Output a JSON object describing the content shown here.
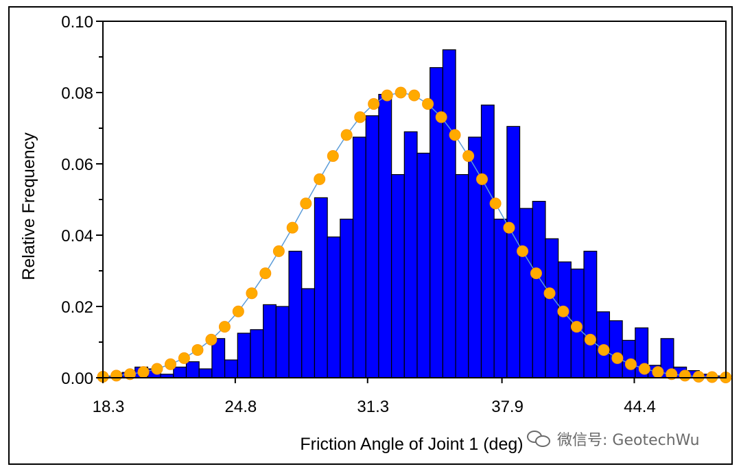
{
  "chart_data": {
    "type": "bar",
    "title": "",
    "xlabel": "Friction Angle of Joint 1 (deg)",
    "ylabel": "Relative Frequency",
    "x_range": [
      18.3,
      48.9
    ],
    "ylim": [
      0,
      0.1
    ],
    "y_ticks": [
      "0.00",
      "0.02",
      "0.04",
      "0.06",
      "0.08",
      "0.10"
    ],
    "x_ticks": [
      "18.3",
      "24.8",
      "31.3",
      "37.9",
      "44.4"
    ],
    "grid": false,
    "legend": "none",
    "bar_color": "#0000ff",
    "curve_color": "#ffaa00",
    "series": [
      {
        "type": "bar",
        "bin_centers": [
          18.3,
          18.93,
          19.56,
          20.19,
          20.82,
          21.45,
          22.08,
          22.71,
          23.34,
          23.97,
          24.6,
          25.23,
          25.86,
          26.49,
          27.12,
          27.75,
          28.38,
          29.01,
          29.64,
          30.27,
          30.9,
          31.53,
          32.16,
          32.79,
          33.42,
          34.05,
          34.68,
          35.31,
          35.94,
          36.57,
          37.2,
          37.83,
          38.46,
          39.09,
          39.72,
          40.35,
          40.98,
          41.61,
          42.24,
          42.87,
          43.5,
          44.13,
          44.76,
          45.39,
          46.02,
          46.65,
          47.28,
          47.91,
          48.54
        ],
        "values": [
          0.0005,
          0.0005,
          0.0015,
          0.003,
          0.0025,
          0.001,
          0.003,
          0.0045,
          0.0025,
          0.011,
          0.005,
          0.0125,
          0.0135,
          0.0205,
          0.02,
          0.0355,
          0.025,
          0.0505,
          0.0395,
          0.0445,
          0.0675,
          0.0735,
          0.0795,
          0.057,
          0.069,
          0.063,
          0.087,
          0.092,
          0.057,
          0.0675,
          0.0765,
          0.0445,
          0.0705,
          0.0475,
          0.0495,
          0.039,
          0.0325,
          0.0305,
          0.0355,
          0.0185,
          0.016,
          0.0105,
          0.014,
          0.0035,
          0.011,
          0.003,
          0.002,
          0.001,
          0.0005
        ]
      },
      {
        "type": "line",
        "marker": "dot",
        "x": [
          18.3,
          18.96,
          19.63,
          20.29,
          20.96,
          21.62,
          22.29,
          22.95,
          23.62,
          24.28,
          24.95,
          25.61,
          26.28,
          26.94,
          27.61,
          28.27,
          28.94,
          29.6,
          30.27,
          30.93,
          31.6,
          32.26,
          32.93,
          33.59,
          34.26,
          34.92,
          35.59,
          36.25,
          36.92,
          37.58,
          38.25,
          38.91,
          39.58,
          40.24,
          40.91,
          41.57,
          42.24,
          42.9,
          43.57,
          44.23,
          44.9,
          45.56,
          46.23,
          46.89,
          47.56,
          48.22,
          48.89
        ],
        "values": [
          0.0003,
          0.0006,
          0.001,
          0.0016,
          0.0025,
          0.0038,
          0.0055,
          0.0078,
          0.0107,
          0.0143,
          0.0186,
          0.0237,
          0.0293,
          0.0355,
          0.0421,
          0.0489,
          0.0557,
          0.0622,
          0.0681,
          0.0731,
          0.0768,
          0.0792,
          0.08,
          0.0792,
          0.0768,
          0.0731,
          0.0681,
          0.0622,
          0.0557,
          0.0489,
          0.0421,
          0.0355,
          0.0293,
          0.0237,
          0.0186,
          0.0143,
          0.0107,
          0.0078,
          0.0055,
          0.0038,
          0.0025,
          0.0016,
          0.001,
          0.0006,
          0.0003,
          0.0002,
          0.0001
        ]
      }
    ]
  },
  "watermark": {
    "text": "微信号: GeotechWu",
    "icon": "wechat-icon"
  }
}
